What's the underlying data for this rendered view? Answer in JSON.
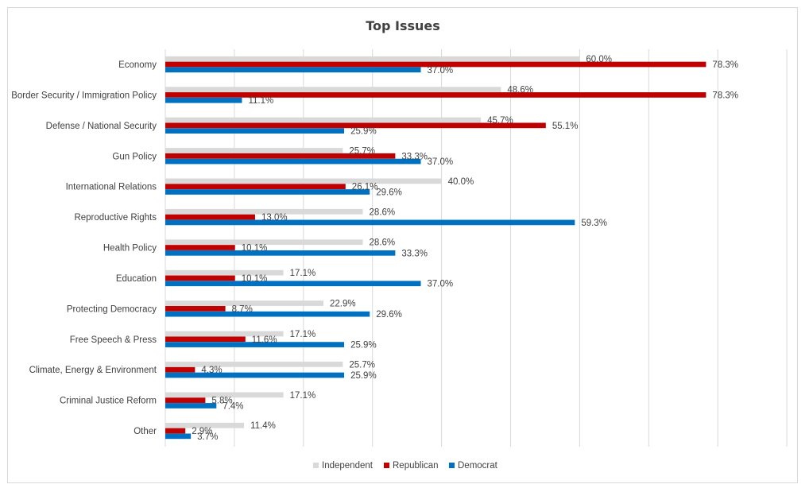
{
  "chart_data": {
    "type": "bar",
    "orientation": "horizontal",
    "title": "Top Issues",
    "xlabel": "",
    "ylabel": "",
    "xlim": [
      0,
      90
    ],
    "grid": true,
    "legend_position": "bottom",
    "value_suffix": "%",
    "categories": [
      "Economy",
      "Border Security / Immigration Policy",
      "Defense / National Security",
      "Gun Policy",
      "International Relations",
      "Reproductive Rights",
      "Health Policy",
      "Education",
      "Protecting Democracy",
      "Free Speech & Press",
      "Climate, Energy & Environment",
      "Criminal Justice Reform",
      "Other"
    ],
    "series": [
      {
        "name": "Independent",
        "color": "#d9d9d9",
        "values": [
          60.0,
          48.6,
          45.7,
          25.7,
          40.0,
          28.6,
          28.6,
          17.1,
          22.9,
          17.1,
          25.7,
          17.1,
          11.4
        ]
      },
      {
        "name": "Republican",
        "color": "#c00000",
        "values": [
          78.3,
          78.3,
          55.1,
          33.3,
          26.1,
          13.0,
          10.1,
          10.1,
          8.7,
          11.6,
          4.3,
          5.8,
          2.9
        ]
      },
      {
        "name": "Democrat",
        "color": "#0070c0",
        "values": [
          37.0,
          11.1,
          25.9,
          37.0,
          29.6,
          59.3,
          33.3,
          37.0,
          29.6,
          25.9,
          25.9,
          7.4,
          3.7
        ]
      }
    ]
  }
}
